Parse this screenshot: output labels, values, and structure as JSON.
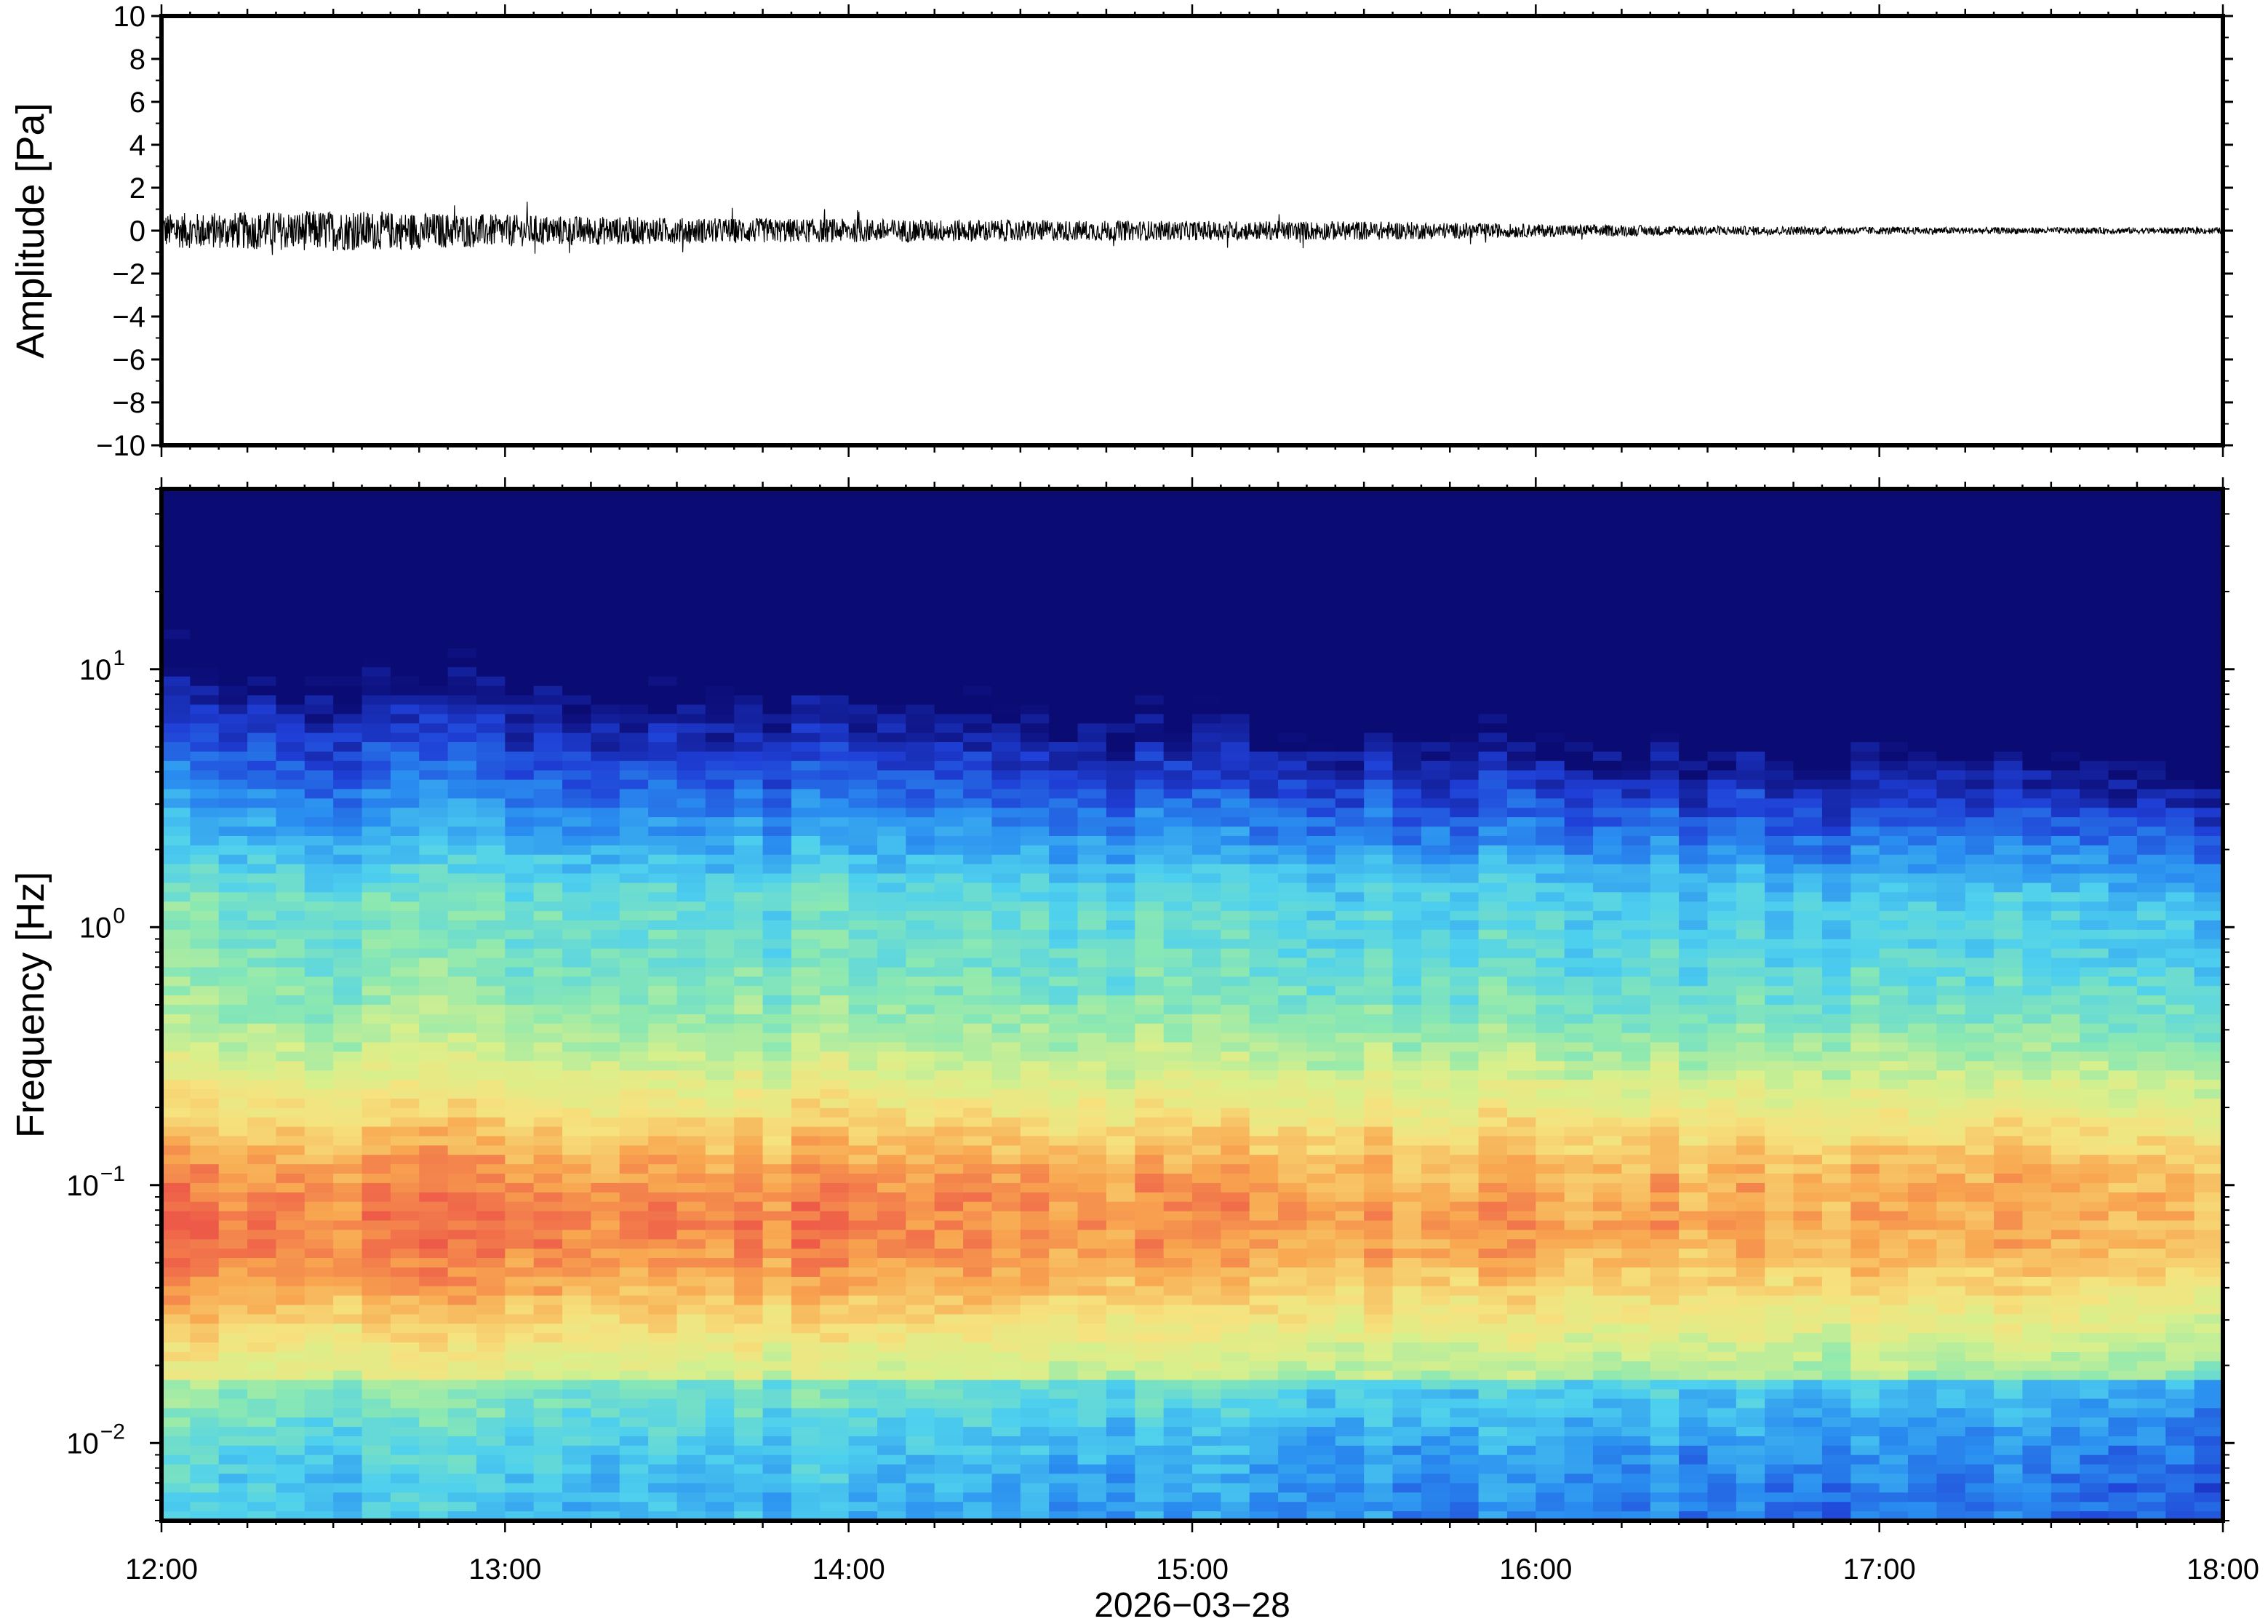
{
  "chart_data": [
    {
      "type": "line",
      "panel": "waveform",
      "ylabel": "Amplitude [Pa]",
      "ylim": [
        -10,
        10
      ],
      "yticks": [
        -10,
        -8,
        -6,
        -4,
        -2,
        0,
        2,
        4,
        6,
        8,
        10
      ],
      "ytick_labels": [
        "−10",
        "−8",
        "−6",
        "−4",
        "−2",
        "0",
        "2",
        "4",
        "6",
        "8",
        "10"
      ],
      "x_range": [
        "12:00",
        "18:00"
      ],
      "envelope": {
        "description_times": [
          "12:00",
          "12:30",
          "13:00",
          "13:30",
          "14:00",
          "14:30",
          "15:00",
          "15:30",
          "16:00",
          "16:30",
          "17:00",
          "17:30",
          "18:00"
        ],
        "amplitude": [
          0.8,
          0.95,
          0.75,
          0.6,
          0.55,
          0.5,
          0.45,
          0.45,
          0.3,
          0.22,
          0.18,
          0.15,
          0.15
        ]
      },
      "color": "#000000"
    },
    {
      "type": "heatmap",
      "panel": "spectrogram",
      "ylabel": "Frequency [Hz]",
      "yscale": "log",
      "ylim": [
        0.005,
        50
      ],
      "yticks": [
        0.01,
        0.1,
        1,
        10
      ],
      "ytick_labels": [
        {
          "base": "10",
          "exp": "−2"
        },
        {
          "base": "10",
          "exp": "−1"
        },
        {
          "base": "10",
          "exp": "0"
        },
        {
          "base": "10",
          "exp": "1"
        }
      ],
      "x_range": [
        "12:00",
        "18:00"
      ],
      "colormap": "rainbow",
      "colormap_stops": [
        "#0b0b74",
        "#1f3fd6",
        "#2a8ef0",
        "#4ed0ee",
        "#8ae8b2",
        "#d8f08c",
        "#f6e27e",
        "#f8a750",
        "#ee5a48"
      ]
    }
  ],
  "xaxis": {
    "tick_labels": [
      "12:00",
      "13:00",
      "14:00",
      "15:00",
      "16:00",
      "17:00",
      "18:00"
    ],
    "date_label": "2026−03−28"
  }
}
